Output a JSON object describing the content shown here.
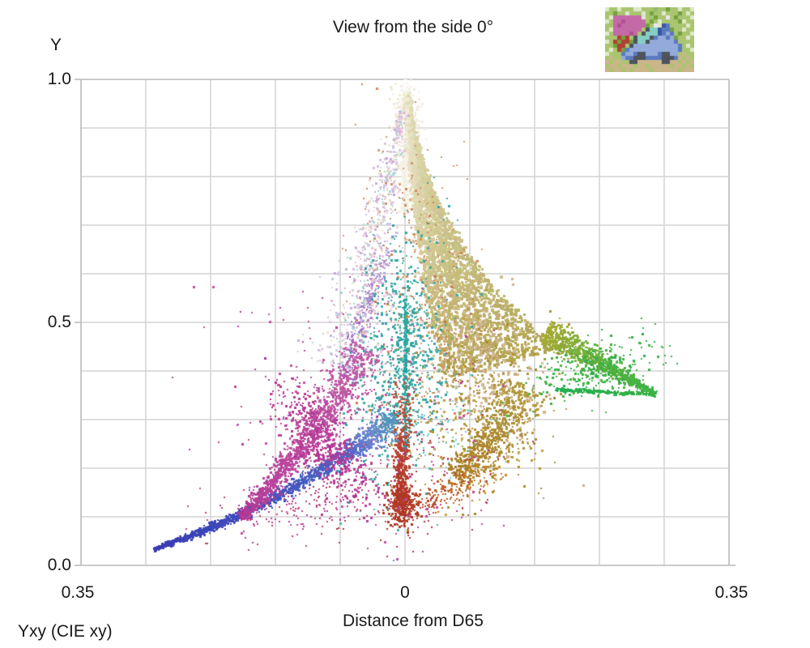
{
  "chart_data": {
    "type": "scatter",
    "title": "View from the side 0°",
    "footnote": "Yxy (CIE xy)",
    "grid": true,
    "background": "#ffffff",
    "gridline_color": "#d4d4d4",
    "border_color": "#c2c2c2",
    "text_color": "#1a1a1a",
    "y_axis": {
      "label": "Y",
      "range": [
        0,
        1
      ],
      "gridline_step": 0.1,
      "ticks": [
        {
          "value": 1.0,
          "label": "1.0"
        },
        {
          "value": 0.5,
          "label": "0.5"
        },
        {
          "value": 0.0,
          "label": "0.0"
        }
      ]
    },
    "x_axis": {
      "label": "Distance from D65",
      "range": [
        -0.35,
        0.35
      ],
      "gridline_step": 0.07,
      "ticks": [
        {
          "value": -0.35,
          "label": "0.35"
        },
        {
          "value": 0.0,
          "label": "0"
        },
        {
          "value": 0.35,
          "label": "0.35"
        }
      ]
    },
    "point_cloud": {
      "seed": 42,
      "description": "Image-gamut point cloud in Yxy space viewed from the side: luminance Y vs chromaticity distance from D65; each dot colored by its chromaticity.",
      "clusters": [
        {
          "name": "pale-top-haze",
          "kind": "blob",
          "n": 280,
          "center": [
            0.0,
            0.905
          ],
          "sx": 9,
          "sy": 30,
          "rot": 0,
          "colors": [
            "#f7f3e6",
            "#efe8d4",
            "#f0e9ec"
          ],
          "size": [
            2,
            3.2
          ],
          "jitter": 5
        },
        {
          "name": "white-needle",
          "kind": "stroke",
          "n": 520,
          "p0": [
            0.0,
            0.997
          ],
          "p1": [
            0.0,
            0.86
          ],
          "p2": [
            0.001,
            0.725
          ],
          "w0": 1,
          "w1": 4,
          "bias": 1.35,
          "colors": [
            "#fdfcf8",
            "#f4eedd"
          ],
          "size": [
            2,
            3
          ],
          "jitter": 4
        },
        {
          "name": "right-sheet",
          "kind": "sheet",
          "n": 3300,
          "edgeL": [
            [
              0.001,
              0.975
            ],
            [
              0.006,
              0.66
            ],
            [
              0.041,
              0.385
            ]
          ],
          "edgeR": [
            [
              0.003,
              0.962
            ],
            [
              0.02,
              0.69
            ],
            [
              0.164,
              0.442
            ]
          ],
          "tbias": 0.95,
          "colors": [
            "#f8f5e8",
            "#e6dfbd",
            "#cdc288",
            "#b3a04b"
          ],
          "edgeColor": "#b0ac58",
          "size": [
            2.5,
            4
          ],
          "jitter": 7
        },
        {
          "name": "sheet-tan-belly",
          "kind": "blob",
          "n": 420,
          "center": [
            0.085,
            0.42
          ],
          "sx": 30,
          "sy": 55,
          "rot": -25,
          "colors": [
            "#d2bc96",
            "#c9ad7e"
          ],
          "size": [
            2.5,
            3.6
          ],
          "jitter": 7
        },
        {
          "name": "mustard-scatter",
          "kind": "blob",
          "n": 420,
          "center": [
            0.075,
            0.315
          ],
          "sx": 46,
          "sy": 58,
          "rot": 0,
          "colors": [
            "#b79e44",
            "#a78526",
            "#c2ab52"
          ],
          "size": [
            2,
            3
          ],
          "jitter": 8
        },
        {
          "name": "mustard-band",
          "kind": "stroke",
          "n": 600,
          "p0": [
            0.128,
            0.372
          ],
          "p1": [
            0.1,
            0.255
          ],
          "p2": [
            0.052,
            0.185
          ],
          "w0": 17,
          "w1": 8,
          "bias": 1,
          "colors": [
            "#b29a3e",
            "#aa7f28"
          ],
          "size": [
            2,
            3
          ],
          "jitter": 8
        },
        {
          "name": "green-wedge",
          "kind": "stroke",
          "n": 850,
          "p0": [
            0.152,
            0.478
          ],
          "p1": [
            0.212,
            0.418
          ],
          "p2": [
            0.271,
            0.352
          ],
          "w0": 10,
          "w1": 1.5,
          "bias": 1.25,
          "colors": [
            "#a8aa32",
            "#62b13e",
            "#3ab348"
          ],
          "size": [
            2,
            3
          ],
          "jitter": 6
        },
        {
          "name": "green-scatter",
          "kind": "blob",
          "n": 270,
          "center": [
            0.205,
            0.402
          ],
          "sx": 40,
          "sy": 15,
          "rot": -18,
          "colors": [
            "#2fb04c",
            "#49b23e",
            "#27ae56"
          ],
          "size": [
            2,
            2.8
          ],
          "jitter": 6
        },
        {
          "name": "green-underline",
          "kind": "stroke",
          "n": 230,
          "p0": [
            0.163,
            0.362
          ],
          "p1": [
            0.215,
            0.356
          ],
          "p2": [
            0.266,
            0.352
          ],
          "w0": 1.3,
          "w1": 1.3,
          "bias": 1,
          "colors": [
            "#23ae52",
            "#36b144"
          ],
          "size": [
            2,
            2.6
          ],
          "jitter": 5
        },
        {
          "name": "salmon-sprinkle",
          "kind": "blob",
          "n": 330,
          "center": [
            0.007,
            0.53
          ],
          "sx": 36,
          "sy": 100,
          "rot": 0,
          "colors": [
            "#d2906a",
            "#c87f54",
            "#dca988"
          ],
          "size": [
            2,
            2.6
          ],
          "jitter": 8
        },
        {
          "name": "teal-band",
          "kind": "blob",
          "n": 680,
          "center": [
            -0.006,
            0.435
          ],
          "sx": 27,
          "sy": 78,
          "rot": 6,
          "colors": [
            "#3dae9f",
            "#2aa2a5",
            "#5cb5ad"
          ],
          "size": [
            2,
            3
          ],
          "jitter": 7
        },
        {
          "name": "teal-line",
          "kind": "stroke",
          "n": 270,
          "p0": [
            0.0005,
            0.548
          ],
          "p1": [
            0.0005,
            0.39
          ],
          "p2": [
            0.0006,
            0.232
          ],
          "w0": 1.2,
          "w1": 1.2,
          "bias": 1,
          "colors": [
            "#2aa9a2",
            "#21a29c"
          ],
          "size": [
            2,
            2.6
          ],
          "jitter": 4
        },
        {
          "name": "cyan-specks-sheet",
          "kind": "blob",
          "n": 70,
          "center": [
            0.045,
            0.3
          ],
          "sx": 30,
          "sy": 30,
          "rot": 0,
          "colors": [
            "#7fd4c8",
            "#62c8d2"
          ],
          "size": [
            2,
            2.2
          ],
          "jitter": 6
        },
        {
          "name": "red-column",
          "kind": "stroke",
          "n": 400,
          "p0": [
            -0.002,
            0.4
          ],
          "p1": [
            -0.003,
            0.26
          ],
          "p2": [
            -0.004,
            0.126
          ],
          "w0": 7,
          "w1": 4,
          "bias": 0.55,
          "colors": [
            "#c05848",
            "#b43726"
          ],
          "size": [
            2,
            3
          ],
          "jitter": 8
        },
        {
          "name": "red-blob",
          "kind": "blob",
          "n": 280,
          "center": [
            -0.004,
            0.122
          ],
          "sx": 9,
          "sy": 14,
          "rot": 0,
          "colors": [
            "#b8402c",
            "#aa3520"
          ],
          "size": [
            2,
            3
          ],
          "jitter": 7
        },
        {
          "name": "red-orange-arc",
          "kind": "stroke",
          "n": 240,
          "p0": [
            -0.001,
            0.118
          ],
          "p1": [
            0.046,
            0.128
          ],
          "p2": [
            0.098,
            0.218
          ],
          "w0": 8,
          "w1": 15,
          "bias": 1,
          "colors": [
            "#b43a28",
            "#bf6428",
            "#c28a2c"
          ],
          "size": [
            2,
            2.6
          ],
          "jitter": 8
        },
        {
          "name": "crimson-specks",
          "kind": "blob",
          "n": 130,
          "center": [
            -0.022,
            0.19
          ],
          "sx": 68,
          "sy": 48,
          "rot": 0,
          "colors": [
            "#b23345",
            "#bb2f62"
          ],
          "size": [
            2,
            2.4
          ],
          "jitter": 7
        },
        {
          "name": "magenta-sparse-cloud",
          "kind": "blob",
          "n": 320,
          "center": [
            -0.058,
            0.275
          ],
          "sx": 78,
          "sy": 88,
          "rot": -20,
          "colors": [
            "#bb3f9a",
            "#c9589f",
            "#ab3a8e"
          ],
          "size": [
            2,
            2.6
          ],
          "jitter": 8
        },
        {
          "name": "magenta-low-scatter",
          "kind": "blob",
          "n": 140,
          "center": [
            -0.125,
            0.115
          ],
          "sx": 58,
          "sy": 17,
          "rot": -13,
          "colors": [
            "#b73b95",
            "#c2477f"
          ],
          "size": [
            2,
            2.5
          ],
          "jitter": 7
        },
        {
          "name": "purple-streak",
          "kind": "stroke",
          "n": 250,
          "p0": [
            -0.066,
            0.385
          ],
          "p1": [
            -0.046,
            0.52
          ],
          "p2": [
            -0.017,
            0.652
          ],
          "w0": 8,
          "w1": 4,
          "bias": 1,
          "colors": [
            "#9d74c6",
            "#b493d6"
          ],
          "size": [
            2,
            2.6
          ],
          "jitter": 8
        },
        {
          "name": "pastel-cone-left",
          "kind": "stroke",
          "n": 640,
          "p0": [
            -0.003,
            0.935
          ],
          "p1": [
            -0.028,
            0.7
          ],
          "p2": [
            -0.067,
            0.405
          ],
          "w0": 3,
          "w1": 24,
          "bias": 0.8,
          "mix": [
            "#cfc3e4",
            "#e3bcd4",
            "#aed6d0",
            "#e9dacb",
            "#c9aad9",
            "#dfc8e0"
          ],
          "colors": [
            "#cfc3e4",
            "#e3bcd4"
          ],
          "size": [
            2,
            2.8
          ],
          "jitter": 8
        },
        {
          "name": "blue-arm",
          "kind": "stroke",
          "n": 1050,
          "p0": [
            -0.271,
            0.033
          ],
          "p1": [
            -0.175,
            0.092
          ],
          "p2": [
            -0.063,
            0.228
          ],
          "w0": 1.2,
          "w1": 5,
          "bias": 0.95,
          "colors": [
            "#3a3cb4",
            "#3f4dbd",
            "#4b66c4"
          ],
          "size": [
            2,
            3
          ],
          "jitter": 5
        },
        {
          "name": "blue-arm-upper",
          "kind": "stroke",
          "n": 400,
          "p0": [
            -0.063,
            0.228
          ],
          "p1": [
            -0.038,
            0.262
          ],
          "p2": [
            -0.01,
            0.305
          ],
          "w0": 5,
          "w1": 10,
          "bias": 1,
          "colors": [
            "#4b66c4",
            "#6f86cf",
            "#4f9ab8"
          ],
          "size": [
            2,
            3
          ],
          "jitter": 7
        },
        {
          "name": "magenta-band",
          "kind": "stroke",
          "n": 1200,
          "p0": [
            -0.178,
            0.098
          ],
          "p1": [
            -0.118,
            0.205
          ],
          "p2": [
            -0.042,
            0.445
          ],
          "w0": 3,
          "w1": 13,
          "bias": 0.95,
          "colors": [
            "#b13a97",
            "#bd4aa0",
            "#c05fa8"
          ],
          "size": [
            2,
            3
          ],
          "jitter": 7
        },
        {
          "name": "magenta-core",
          "kind": "blob",
          "n": 500,
          "center": [
            -0.086,
            0.248
          ],
          "sx": 16,
          "sy": 40,
          "rot": -38,
          "colors": [
            "#bc3f9d",
            "#ad3590",
            "#c64da4"
          ],
          "size": [
            2,
            3
          ],
          "jitter": 6
        }
      ]
    }
  },
  "thumbnail": {
    "alt": "posterized photo of a blue classic car with open hood, pink sign and grass",
    "cell": 5,
    "palette": [
      "#f2f0e4",
      "#a9c570",
      "#73a13f",
      "#dfe8c8",
      "#c46aa6",
      "#b05195",
      "#93aadb",
      "#5b7ac2",
      "#3a56a2",
      "#84cfc4",
      "#cbb68a",
      "#b04034",
      "#4d545c",
      "#ece6f0",
      "#92ba66"
    ],
    "rows": [
      [
        3,
        1,
        1,
        3,
        1,
        1,
        1,
        3,
        3,
        1,
        1,
        1,
        14,
        1,
        1,
        2,
        1,
        1,
        3,
        1,
        1,
        3
      ],
      [
        1,
        1,
        2,
        1,
        1,
        3,
        1,
        1,
        1,
        3,
        1,
        2,
        1,
        1,
        3,
        1,
        1,
        1,
        2,
        1,
        3,
        1
      ],
      [
        1,
        3,
        4,
        4,
        4,
        4,
        4,
        4,
        4,
        3,
        1,
        1,
        2,
        1,
        1,
        13,
        1,
        2,
        1,
        1,
        1,
        3
      ],
      [
        3,
        1,
        4,
        4,
        5,
        4,
        4,
        4,
        4,
        4,
        1,
        2,
        1,
        3,
        1,
        1,
        1,
        1,
        2,
        3,
        1,
        1
      ],
      [
        1,
        1,
        4,
        5,
        4,
        4,
        4,
        4,
        4,
        4,
        2,
        1,
        13,
        3,
        8,
        7,
        1,
        1,
        1,
        1,
        3,
        1
      ],
      [
        1,
        3,
        4,
        4,
        4,
        4,
        4,
        4,
        4,
        1,
        12,
        9,
        9,
        8,
        7,
        7,
        2,
        1,
        1,
        3,
        1,
        1
      ],
      [
        3,
        1,
        4,
        4,
        4,
        4,
        5,
        4,
        1,
        12,
        9,
        9,
        9,
        8,
        7,
        6,
        7,
        1,
        2,
        1,
        1,
        3
      ],
      [
        1,
        1,
        1,
        11,
        2,
        11,
        1,
        12,
        9,
        9,
        9,
        12,
        7,
        6,
        6,
        7,
        6,
        2,
        1,
        1,
        3,
        1
      ],
      [
        3,
        1,
        11,
        2,
        11,
        11,
        2,
        12,
        9,
        9,
        12,
        6,
        6,
        6,
        6,
        6,
        6,
        7,
        1,
        1,
        1,
        1
      ],
      [
        1,
        1,
        2,
        11,
        11,
        1,
        12,
        6,
        6,
        6,
        6,
        6,
        6,
        6,
        6,
        6,
        6,
        6,
        7,
        1,
        3,
        1
      ],
      [
        1,
        3,
        1,
        11,
        2,
        7,
        6,
        6,
        6,
        6,
        6,
        6,
        6,
        6,
        6,
        6,
        6,
        6,
        7,
        1,
        1,
        3
      ],
      [
        3,
        1,
        1,
        1,
        7,
        6,
        6,
        7,
        12,
        12,
        6,
        6,
        6,
        7,
        12,
        12,
        6,
        6,
        1,
        10,
        1,
        1
      ],
      [
        1,
        10,
        1,
        1,
        6,
        7,
        7,
        12,
        12,
        12,
        7,
        7,
        7,
        7,
        12,
        12,
        12,
        7,
        10,
        1,
        10,
        1
      ],
      [
        10,
        1,
        10,
        10,
        1,
        1,
        12,
        12,
        10,
        10,
        10,
        10,
        10,
        10,
        12,
        12,
        10,
        10,
        1,
        10,
        1,
        10
      ],
      [
        1,
        10,
        10,
        1,
        10,
        10,
        10,
        1,
        10,
        10,
        1,
        10,
        10,
        10,
        10,
        10,
        1,
        10,
        10,
        1,
        10,
        1
      ],
      [
        10,
        1,
        10,
        10,
        1,
        10,
        1,
        10,
        10,
        10,
        10,
        1,
        10,
        10,
        10,
        10,
        10,
        10,
        1,
        10,
        10,
        10
      ]
    ]
  }
}
